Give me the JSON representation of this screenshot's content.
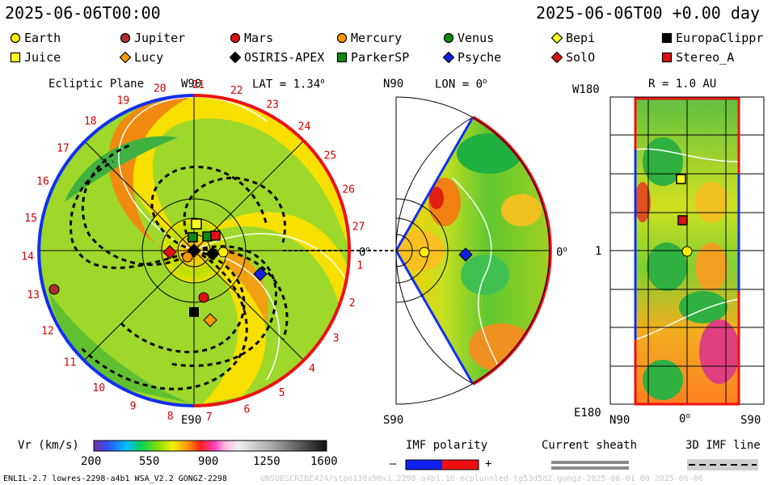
{
  "header": {
    "time_left": "2025-06-06T00:00",
    "time_right": "2025-06-06T00 +0.00 day"
  },
  "legend": [
    {
      "name": "Earth",
      "shape": "circle",
      "color": "#ffee00"
    },
    {
      "name": "Jupiter",
      "shape": "circle",
      "color": "#b03030"
    },
    {
      "name": "Mars",
      "shape": "circle",
      "color": "#e01010"
    },
    {
      "name": "Mercury",
      "shape": "circle",
      "color": "#ff9900"
    },
    {
      "name": "Venus",
      "shape": "circle",
      "color": "#108a10"
    },
    {
      "name": "Bepi",
      "shape": "diamond",
      "color": "#ffff20"
    },
    {
      "name": "EuropaClippr",
      "shape": "square",
      "color": "#000000"
    },
    {
      "name": "Juice",
      "shape": "square",
      "color": "#ffff20"
    },
    {
      "name": "Lucy",
      "shape": "diamond",
      "color": "#ff9900"
    },
    {
      "name": "OSIRIS-APEX",
      "shape": "diamond",
      "color": "#000000"
    },
    {
      "name": "ParkerSP",
      "shape": "square",
      "color": "#108a10"
    },
    {
      "name": "Psyche",
      "shape": "diamond",
      "color": "#1020e0"
    },
    {
      "name": "SolO",
      "shape": "diamond",
      "color": "#e01010"
    },
    {
      "name": "Stereo_A",
      "shape": "square",
      "color": "#e01010"
    }
  ],
  "panels": {
    "ecliptic": {
      "title": "Ecliptic Plane",
      "top": "W90",
      "bottom": "E90",
      "lat": "LAT = 1.34",
      "deg": "o"
    },
    "meridional": {
      "top": "N90",
      "bottom": "S90",
      "lon": "LON = 0",
      "deg": "o",
      "right": "0",
      "left": "0"
    },
    "radial": {
      "title": "R = 1.0 AU",
      "top_left": "W180",
      "bottom_left": "E180",
      "mid_left": "1",
      "bottom_ticks": [
        "N90",
        "0",
        "S90"
      ],
      "deg": "o"
    }
  },
  "carrington_ticks": [
    "19",
    "20",
    "21",
    "22",
    "23",
    "24",
    "25",
    "26",
    "27",
    "1",
    "2",
    "3",
    "4",
    "5",
    "6",
    "7",
    "8",
    "9",
    "10",
    "11",
    "12",
    "13",
    "14",
    "15",
    "16",
    "17",
    "18"
  ],
  "colorbar": {
    "label": "Vr (km/s)",
    "ticks": [
      "200",
      "550",
      "900",
      "1250",
      "1600"
    ]
  },
  "imf": {
    "label": "IMF polarity",
    "minus": "–",
    "plus": "+"
  },
  "sheath": {
    "label": "Current sheath"
  },
  "imf3d": {
    "label": "3D IMF line"
  },
  "footer": {
    "left": "ENLIL-2.7 lowres-2298-a4b1 WSA_V2.2 GONGZ-2298",
    "right": "UNSUBSCRIBE424/stpo130x90x1.2298-a4b1.16-mcplunnled-tg53d5d2.gongz-2025-06-01 00  2025-06-06"
  }
}
